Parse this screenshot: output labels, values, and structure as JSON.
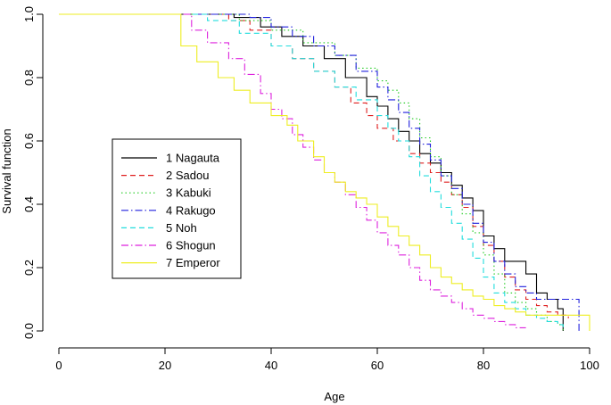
{
  "chart_data": {
    "type": "line",
    "step": true,
    "title": "",
    "xlabel": "Age",
    "ylabel": "Survival function",
    "xlim": [
      0,
      100
    ],
    "ylim": [
      0,
      1
    ],
    "xticks": [
      0,
      20,
      40,
      60,
      80,
      100
    ],
    "yticks": [
      0.0,
      0.2,
      0.4,
      0.6,
      0.8,
      1.0
    ],
    "xtick_labels": [
      "0",
      "20",
      "40",
      "60",
      "80",
      "100"
    ],
    "ytick_labels": [
      "0.0",
      "0.2",
      "0.4",
      "0.6",
      "0.8",
      "1.0"
    ],
    "legend_position": "center-left",
    "series": [
      {
        "name": "1 Nagauta",
        "color": "#000000",
        "dash": "",
        "x": [
          0,
          25,
          33,
          38,
          42,
          46,
          50,
          54,
          58,
          60,
          62,
          64,
          66,
          68,
          70,
          72,
          74,
          76,
          78,
          80,
          82,
          84,
          86,
          88,
          90,
          92,
          94,
          95
        ],
        "y": [
          1.0,
          1.0,
          0.99,
          0.96,
          0.93,
          0.9,
          0.86,
          0.8,
          0.74,
          0.71,
          0.67,
          0.63,
          0.6,
          0.56,
          0.53,
          0.5,
          0.46,
          0.42,
          0.38,
          0.3,
          0.26,
          0.22,
          0.22,
          0.18,
          0.12,
          0.1,
          0.07,
          0.0
        ]
      },
      {
        "name": "2 Sadou",
        "color": "#df2020",
        "dash": "6,4",
        "x": [
          0,
          25,
          32,
          36,
          40,
          44,
          48,
          52,
          55,
          58,
          60,
          63,
          66,
          68,
          70,
          72,
          74,
          76,
          78,
          80,
          82,
          84,
          86,
          88,
          90,
          92,
          94,
          96
        ],
        "y": [
          1.0,
          1.0,
          0.98,
          0.95,
          0.9,
          0.86,
          0.82,
          0.77,
          0.72,
          0.68,
          0.64,
          0.6,
          0.56,
          0.53,
          0.5,
          0.47,
          0.43,
          0.39,
          0.33,
          0.27,
          0.22,
          0.17,
          0.13,
          0.1,
          0.08,
          0.06,
          0.05,
          0.04
        ]
      },
      {
        "name": "3 Kabuki",
        "color": "#22cc22",
        "dash": "1.5,3",
        "x": [
          0,
          28,
          34,
          40,
          46,
          52,
          56,
          60,
          62,
          64,
          66,
          68,
          70,
          72,
          74,
          76,
          78,
          80,
          82,
          84,
          86,
          88,
          90,
          92,
          94,
          95
        ],
        "y": [
          1.0,
          1.0,
          0.98,
          0.95,
          0.91,
          0.87,
          0.83,
          0.79,
          0.76,
          0.72,
          0.67,
          0.61,
          0.55,
          0.49,
          0.43,
          0.37,
          0.31,
          0.24,
          0.18,
          0.12,
          0.09,
          0.07,
          0.05,
          0.03,
          0.02,
          0.0
        ]
      },
      {
        "name": "4 Rakugo",
        "color": "#2020dd",
        "dash": "8,3,1.5,3",
        "x": [
          0,
          24,
          30,
          36,
          40,
          44,
          48,
          52,
          56,
          60,
          62,
          64,
          66,
          68,
          70,
          72,
          74,
          76,
          78,
          80,
          82,
          84,
          86,
          88,
          90,
          92,
          96,
          98
        ],
        "y": [
          1.0,
          1.0,
          1.0,
          0.99,
          0.96,
          0.93,
          0.9,
          0.87,
          0.82,
          0.77,
          0.73,
          0.69,
          0.64,
          0.59,
          0.54,
          0.49,
          0.45,
          0.4,
          0.34,
          0.28,
          0.22,
          0.18,
          0.14,
          0.12,
          0.1,
          0.1,
          0.1,
          0.0
        ]
      },
      {
        "name": "5 Noh",
        "color": "#22dddd",
        "dash": "6,4",
        "x": [
          0,
          24,
          28,
          34,
          40,
          44,
          48,
          52,
          56,
          60,
          62,
          64,
          66,
          68,
          70,
          72,
          74,
          76,
          78,
          80,
          82,
          84,
          86,
          88,
          90,
          92,
          94,
          95
        ],
        "y": [
          1.0,
          1.0,
          0.98,
          0.94,
          0.9,
          0.86,
          0.82,
          0.77,
          0.73,
          0.68,
          0.64,
          0.6,
          0.55,
          0.49,
          0.44,
          0.39,
          0.34,
          0.29,
          0.23,
          0.17,
          0.12,
          0.09,
          0.07,
          0.05,
          0.04,
          0.03,
          0.02,
          0.01
        ]
      },
      {
        "name": "6 Shogun",
        "color": "#dd22dd",
        "dash": "8,3,1.5,3",
        "x": [
          0,
          22,
          25,
          28,
          32,
          35,
          38,
          40,
          42,
          44,
          46,
          48,
          50,
          52,
          54,
          56,
          58,
          60,
          62,
          64,
          66,
          68,
          70,
          72,
          74,
          76,
          78,
          80,
          82,
          84,
          86,
          88
        ],
        "y": [
          1.0,
          1.0,
          0.95,
          0.91,
          0.86,
          0.81,
          0.75,
          0.7,
          0.67,
          0.62,
          0.58,
          0.54,
          0.5,
          0.47,
          0.43,
          0.39,
          0.35,
          0.31,
          0.27,
          0.24,
          0.2,
          0.16,
          0.13,
          0.11,
          0.09,
          0.07,
          0.05,
          0.04,
          0.03,
          0.02,
          0.01,
          0.01
        ]
      },
      {
        "name": "7 Emperor",
        "color": "#eeee22",
        "dash": "",
        "x": [
          0,
          21,
          23,
          26,
          30,
          33,
          36,
          40,
          43,
          45,
          48,
          50,
          52,
          54,
          56,
          58,
          60,
          62,
          64,
          66,
          68,
          70,
          72,
          74,
          76,
          78,
          80,
          82,
          84,
          86,
          88,
          90,
          92,
          94,
          96,
          98,
          100
        ],
        "y": [
          1.0,
          1.0,
          0.9,
          0.85,
          0.8,
          0.76,
          0.72,
          0.68,
          0.65,
          0.6,
          0.55,
          0.5,
          0.47,
          0.44,
          0.42,
          0.4,
          0.36,
          0.33,
          0.3,
          0.27,
          0.24,
          0.2,
          0.17,
          0.15,
          0.13,
          0.11,
          0.1,
          0.08,
          0.07,
          0.06,
          0.05,
          0.05,
          0.05,
          0.05,
          0.05,
          0.05,
          0.0
        ]
      }
    ]
  }
}
